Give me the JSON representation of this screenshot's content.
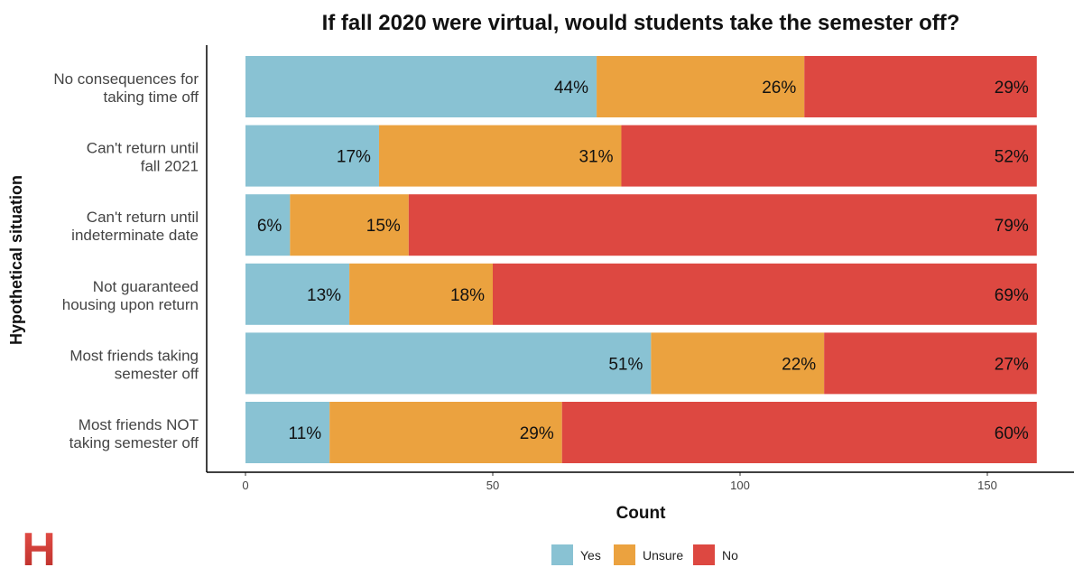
{
  "chart_data": {
    "type": "bar",
    "orientation": "horizontal",
    "stacked": true,
    "title": "If fall 2020 were virtual, would students take the semester off?",
    "xlabel": "Count",
    "ylabel": "Hypothetical situation",
    "xlim": [
      0,
      160
    ],
    "xticks": [
      0,
      50,
      100,
      150
    ],
    "grid": false,
    "legend_position": "bottom",
    "categories": [
      "No consequences for\ntaking time off",
      "Can't return until\nfall 2021",
      "Can't return until\nindeterminate date",
      "Not guaranteed\nhousing upon return",
      "Most friends taking\nsemester off",
      "Most friends NOT\ntaking semester off"
    ],
    "series": [
      {
        "name": "Yes",
        "color": "#89C2D3",
        "values": [
          71,
          27,
          9,
          21,
          82,
          17
        ],
        "labels": [
          "44%",
          "17%",
          "6%",
          "13%",
          "51%",
          "11%"
        ]
      },
      {
        "name": "Unsure",
        "color": "#EBA23F",
        "values": [
          42,
          49,
          24,
          29,
          35,
          47
        ],
        "labels": [
          "26%",
          "31%",
          "15%",
          "18%",
          "22%",
          "29%"
        ]
      },
      {
        "name": "No",
        "color": "#DD4841",
        "values": [
          47,
          84,
          127,
          110,
          43,
          96
        ],
        "labels": [
          "29%",
          "52%",
          "79%",
          "69%",
          "27%",
          "60%"
        ]
      }
    ]
  },
  "logo": {
    "text": "H",
    "colors": [
      "#E8514A",
      "#B82D28"
    ]
  }
}
